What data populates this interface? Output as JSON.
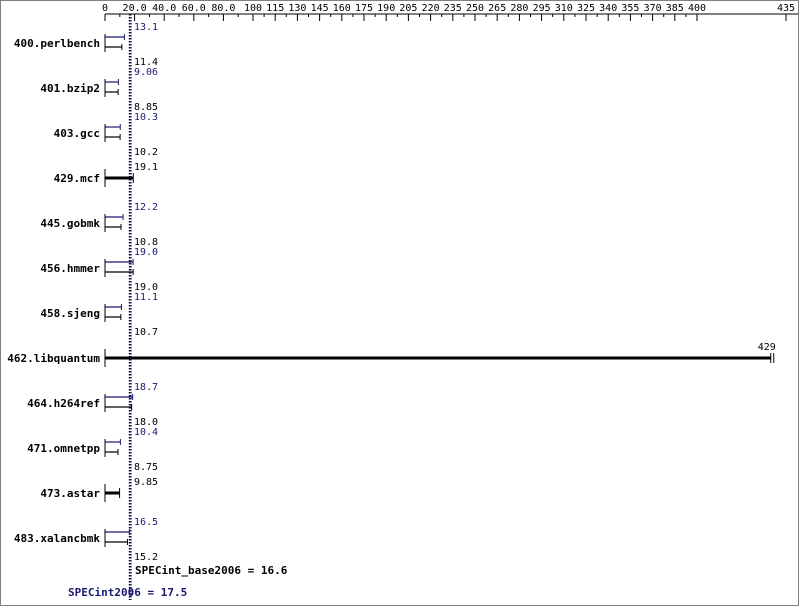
{
  "chart_data": {
    "type": "bar",
    "orientation": "horizontal",
    "x_ticks": [
      0,
      20.0,
      40.0,
      60.0,
      80.0,
      100,
      115,
      130,
      145,
      160,
      175,
      190,
      205,
      220,
      235,
      250,
      265,
      280,
      295,
      310,
      325,
      340,
      355,
      370,
      385,
      400,
      435
    ],
    "x_tick_labels": [
      "0",
      "20.0",
      "40.0",
      "60.0",
      "80.0",
      "100",
      "115",
      "130",
      "145",
      "160",
      "175",
      "190",
      "205",
      "220",
      "235",
      "250",
      "265",
      "280",
      "295",
      "310",
      "325",
      "340",
      "355",
      "370",
      "385",
      "400",
      "435"
    ],
    "xlim": [
      0,
      435
    ],
    "categories": [
      "400.perlbench",
      "401.bzip2",
      "403.gcc",
      "429.mcf",
      "445.gobmk",
      "456.hmmer",
      "458.sjeng",
      "462.libquantum",
      "464.h264ref",
      "471.omnetpp",
      "473.astar",
      "483.xalancbmk"
    ],
    "series": [
      {
        "name": "SPECint2006",
        "color": "#191970",
        "values": [
          13.1,
          9.06,
          10.3,
          null,
          12.2,
          19.0,
          11.1,
          null,
          18.7,
          10.4,
          null,
          16.5
        ],
        "value_labels": [
          "13.1",
          "9.06",
          "10.3",
          "",
          "12.2",
          "19.0",
          "11.1",
          "",
          "18.7",
          "10.4",
          "",
          "16.5"
        ]
      },
      {
        "name": "SPECint_base2006",
        "color": "#000000",
        "values": [
          11.4,
          8.85,
          10.2,
          19.1,
          10.8,
          19.0,
          10.7,
          429,
          18.0,
          8.75,
          9.85,
          15.2
        ],
        "value_labels": [
          "11.4",
          "8.85",
          "10.2",
          "19.1",
          "10.8",
          "19.0",
          "10.7",
          "429",
          "18.0",
          "8.75",
          "9.85",
          "15.2"
        ]
      }
    ],
    "reference_lines": [
      {
        "name": "SPECint_base2006",
        "value": 16.6,
        "label": "SPECint_base2006 = 16.6",
        "color": "#000000"
      },
      {
        "name": "SPECint2006",
        "value": 17.5,
        "label": "SPECint2006 = 17.5",
        "color": "#191970"
      }
    ]
  }
}
